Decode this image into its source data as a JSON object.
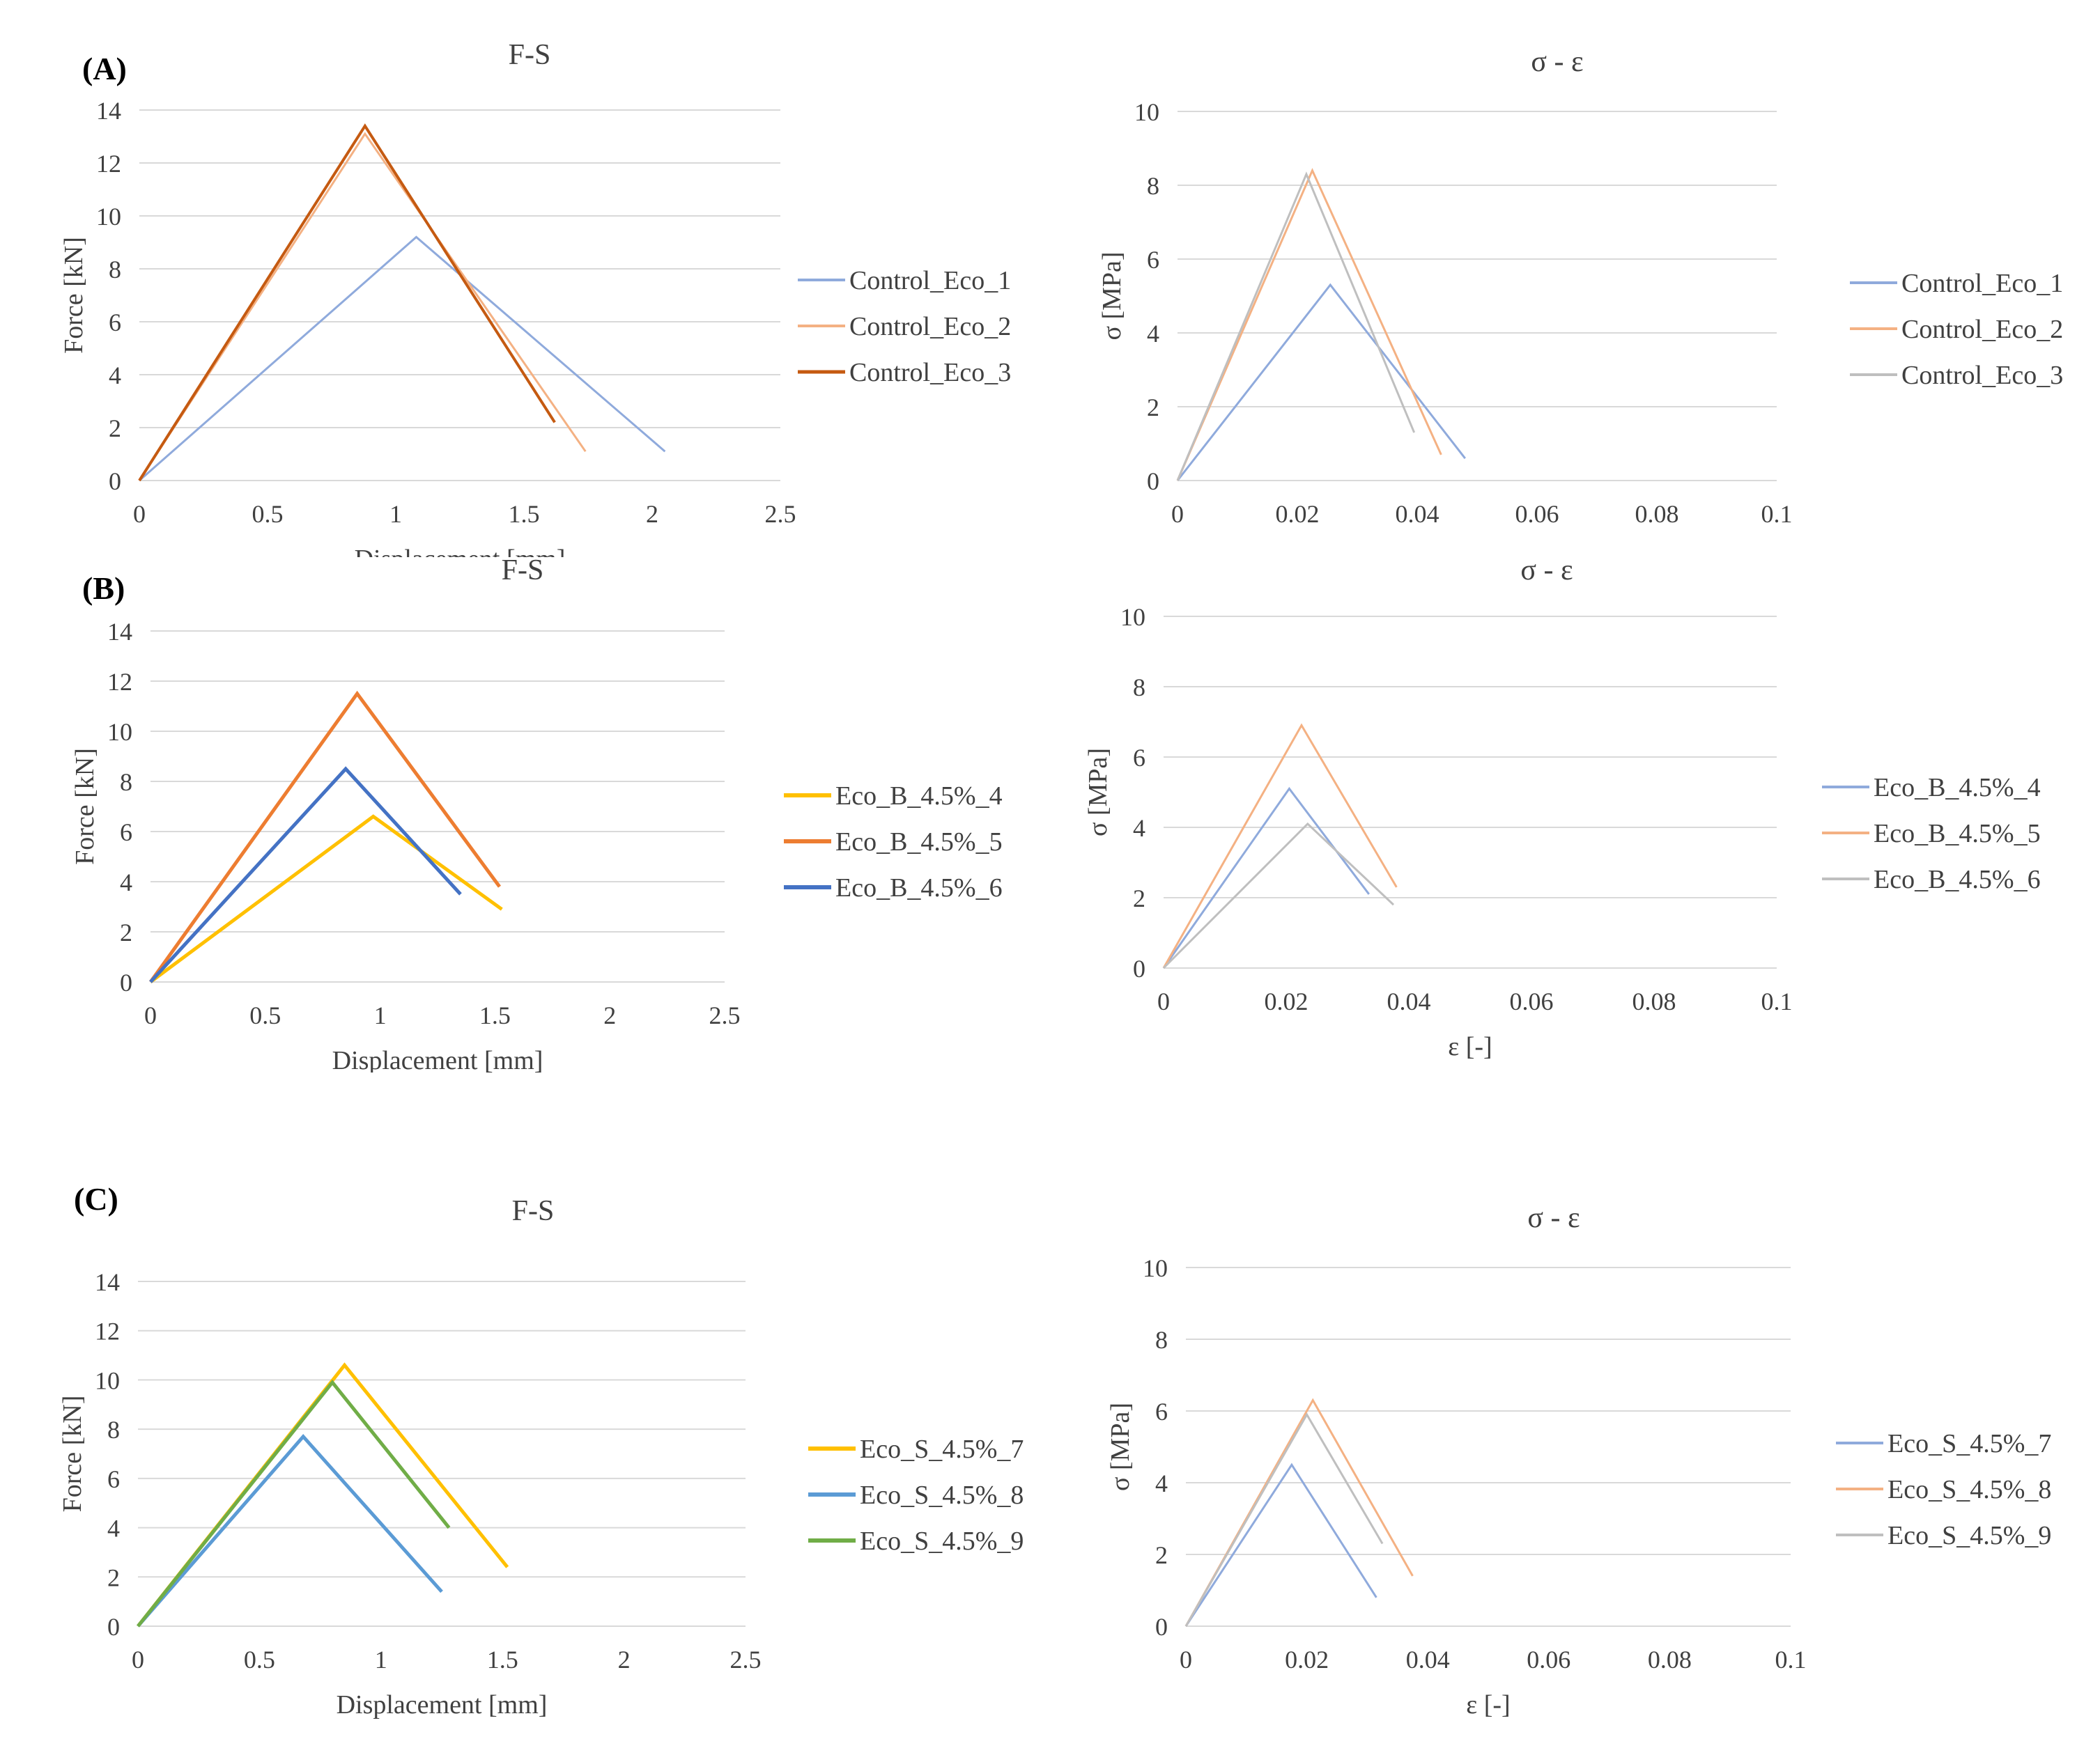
{
  "panels": [
    {
      "label": "(A)"
    },
    {
      "label": "(B)"
    },
    {
      "label": "(C)"
    }
  ],
  "chart_data": [
    {
      "id": "A-FS",
      "type": "line",
      "title": "F-S",
      "xlabel": "Displacement [mm]",
      "ylabel": "Force [kN]",
      "xlim": [
        0,
        2.5
      ],
      "ylim": [
        0,
        14
      ],
      "xticks": [
        "0",
        "0.5",
        "1",
        "1.5",
        "2",
        "2.5"
      ],
      "yticks": [
        "0",
        "2",
        "4",
        "6",
        "8",
        "10",
        "12",
        "14"
      ],
      "grid": true,
      "legend": "right",
      "series": [
        {
          "name": "Control_Eco_1",
          "color": "#8FAADC",
          "width": 3,
          "x": [
            0,
            1.08,
            2.05
          ],
          "y": [
            0,
            9.2,
            1.1
          ]
        },
        {
          "name": "Control_Eco_2",
          "color": "#F4B183",
          "width": 3,
          "x": [
            0,
            0.88,
            1.74
          ],
          "y": [
            0,
            13.1,
            1.1
          ]
        },
        {
          "name": "Control_Eco_3",
          "color": "#C55A11",
          "width": 4,
          "x": [
            0,
            0.88,
            1.62
          ],
          "y": [
            0,
            13.4,
            2.2
          ]
        }
      ]
    },
    {
      "id": "A-SE",
      "type": "line",
      "title": "σ - ε",
      "xlabel": "",
      "ylabel": "σ [MPa]",
      "xlim": [
        0,
        0.1
      ],
      "ylim": [
        0,
        10
      ],
      "xticks": [
        "0",
        "0.02",
        "0.04",
        "0.06",
        "0.08",
        "0.1"
      ],
      "yticks": [
        "0",
        "2",
        "4",
        "6",
        "8",
        "10"
      ],
      "grid": true,
      "legend": "right",
      "series": [
        {
          "name": "Control_Eco_1",
          "color": "#8FAADC",
          "width": 3,
          "x": [
            0,
            0.0255,
            0.048
          ],
          "y": [
            0,
            5.3,
            0.6
          ]
        },
        {
          "name": "Control_Eco_2",
          "color": "#F4B183",
          "width": 3,
          "x": [
            0,
            0.0225,
            0.044
          ],
          "y": [
            0,
            8.4,
            0.7
          ]
        },
        {
          "name": "Control_Eco_3",
          "color": "#BFBFBF",
          "width": 3,
          "x": [
            0,
            0.0215,
            0.0395
          ],
          "y": [
            0,
            8.3,
            1.3
          ]
        }
      ]
    },
    {
      "id": "B-FS",
      "type": "line",
      "title": "F-S",
      "xlabel": "Displacement [mm]",
      "ylabel": "Force [kN]",
      "xlim": [
        0,
        2.5
      ],
      "ylim": [
        0,
        14
      ],
      "xticks": [
        "0",
        "0.5",
        "1",
        "1.5",
        "2",
        "2.5"
      ],
      "yticks": [
        "0",
        "2",
        "4",
        "6",
        "8",
        "10",
        "12",
        "14"
      ],
      "grid": true,
      "legend": "right",
      "series": [
        {
          "name": "Eco_B_4.5%_4",
          "color": "#FFC000",
          "width": 5,
          "x": [
            0,
            0.97,
            1.53
          ],
          "y": [
            0,
            6.6,
            2.9
          ]
        },
        {
          "name": "Eco_B_4.5%_5",
          "color": "#ED7D31",
          "width": 5,
          "x": [
            0,
            0.9,
            1.52
          ],
          "y": [
            0,
            11.5,
            3.8
          ]
        },
        {
          "name": "Eco_B_4.5%_6",
          "color": "#4472C4",
          "width": 5,
          "x": [
            0,
            0.85,
            1.35
          ],
          "y": [
            0,
            8.5,
            3.5
          ]
        }
      ]
    },
    {
      "id": "B-SE",
      "type": "line",
      "title": "σ - ε",
      "xlabel": "ε [-]",
      "ylabel": "σ [MPa]",
      "xlim": [
        0,
        0.1
      ],
      "ylim": [
        0,
        10
      ],
      "xticks": [
        "0",
        "0.02",
        "0.04",
        "0.06",
        "0.08",
        "0.1"
      ],
      "yticks": [
        "0",
        "2",
        "4",
        "6",
        "8",
        "10"
      ],
      "grid": true,
      "legend": "right",
      "series": [
        {
          "name": "Eco_B_4.5%_4",
          "color": "#8FAADC",
          "width": 3,
          "x": [
            0,
            0.0205,
            0.0335
          ],
          "y": [
            0,
            5.1,
            2.1
          ]
        },
        {
          "name": "Eco_B_4.5%_5",
          "color": "#F4B183",
          "width": 3,
          "x": [
            0,
            0.0225,
            0.038
          ],
          "y": [
            0,
            6.9,
            2.3
          ]
        },
        {
          "name": "Eco_B_4.5%_6",
          "color": "#BFBFBF",
          "width": 3,
          "x": [
            0,
            0.0235,
            0.0375
          ],
          "y": [
            0,
            4.1,
            1.8
          ]
        }
      ]
    },
    {
      "id": "C-FS",
      "type": "line",
      "title": "F-S",
      "xlabel": "Displacement [mm]",
      "ylabel": "Force [kN]",
      "xlim": [
        0,
        2.5
      ],
      "ylim": [
        0,
        14
      ],
      "xticks": [
        "0",
        "0.5",
        "1",
        "1.5",
        "2",
        "2.5"
      ],
      "yticks": [
        "0",
        "2",
        "4",
        "6",
        "8",
        "10",
        "12",
        "14"
      ],
      "grid": true,
      "legend": "right",
      "series": [
        {
          "name": "Eco_S_4.5%_7",
          "color": "#FFC000",
          "width": 5,
          "x": [
            0,
            0.85,
            1.52
          ],
          "y": [
            0,
            10.6,
            2.4
          ]
        },
        {
          "name": "Eco_S_4.5%_8",
          "color": "#5B9BD5",
          "width": 5,
          "x": [
            0,
            0.68,
            1.25
          ],
          "y": [
            0,
            7.7,
            1.4
          ]
        },
        {
          "name": "Eco_S_4.5%_9",
          "color": "#70AD47",
          "width": 5,
          "x": [
            0,
            0.8,
            1.28
          ],
          "y": [
            0,
            9.9,
            4.0
          ]
        }
      ]
    },
    {
      "id": "C-SE",
      "type": "line",
      "title": "σ - ε",
      "xlabel": "ε [-]",
      "ylabel": "σ [MPa]",
      "xlim": [
        0,
        0.1
      ],
      "ylim": [
        0,
        10
      ],
      "xticks": [
        "0",
        "0.02",
        "0.04",
        "0.06",
        "0.08",
        "0.1"
      ],
      "yticks": [
        "0",
        "2",
        "4",
        "6",
        "8",
        "10"
      ],
      "grid": true,
      "legend": "right",
      "series": [
        {
          "name": "Eco_S_4.5%_7",
          "color": "#8FAADC",
          "width": 3,
          "x": [
            0,
            0.0175,
            0.0315
          ],
          "y": [
            0,
            4.5,
            0.8
          ]
        },
        {
          "name": "Eco_S_4.5%_8",
          "color": "#F4B183",
          "width": 3,
          "x": [
            0,
            0.021,
            0.0375
          ],
          "y": [
            0,
            6.3,
            1.4
          ]
        },
        {
          "name": "Eco_S_4.5%_9",
          "color": "#BFBFBF",
          "width": 3,
          "x": [
            0,
            0.02,
            0.0325
          ],
          "y": [
            0,
            5.9,
            2.3
          ]
        }
      ]
    }
  ]
}
